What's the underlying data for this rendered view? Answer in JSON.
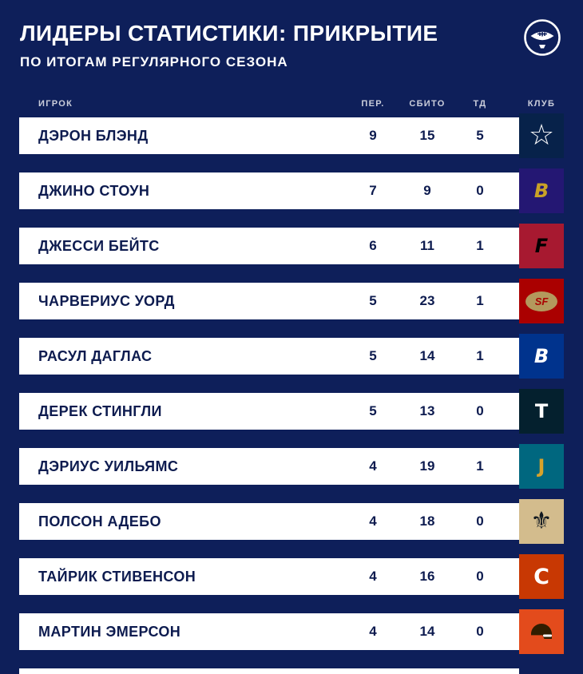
{
  "header": {
    "title": "ЛИДЕРЫ СТАТИСТИКИ: ПРИКРЫТИЕ",
    "subtitle": "ПО ИТОГАМ РЕГУЛЯРНОГО СЕЗОНА",
    "badge_icon": "football-icon"
  },
  "colors": {
    "background": "#0e1f5a",
    "card": "#ffffff",
    "text_dark": "#0d1b4f",
    "header_label": "#c3cae0"
  },
  "table": {
    "columns": [
      "ИГРОК",
      "ПЕР.",
      "СБИТО",
      "ТД",
      "КЛУБ"
    ],
    "rows": [
      {
        "player": "ДЭРОН БЛЭНД",
        "per": "9",
        "sbito": "15",
        "td": "5",
        "club": {
          "name": "dallas-cowboys",
          "bg": "#07224a",
          "type": "glyph",
          "glyph": "☆",
          "glyph_color": "#ffffff",
          "size": 36
        }
      },
      {
        "player": "ДЖИНО СТОУН",
        "per": "7",
        "sbito": "9",
        "td": "0",
        "club": {
          "name": "baltimore-ravens",
          "bg": "#241773",
          "type": "glyph",
          "glyph": "B",
          "glyph_color": "#c9a227",
          "size": 24,
          "italic": true
        }
      },
      {
        "player": "ДЖЕССИ БЕЙТС",
        "per": "6",
        "sbito": "11",
        "td": "1",
        "club": {
          "name": "atlanta-falcons",
          "bg": "#a71930",
          "type": "glyph",
          "glyph": "F",
          "glyph_color": "#000000",
          "size": 24,
          "italic": true
        }
      },
      {
        "player": "ЧАРВЕРИУС УОРД",
        "per": "5",
        "sbito": "23",
        "td": "1",
        "club": {
          "name": "san-francisco-49ers",
          "bg": "#aa0000",
          "type": "oval",
          "glyph": "SF",
          "glyph_color": "#aa0000",
          "oval_bg": "#b3995d"
        }
      },
      {
        "player": "РАСУЛ ДАГЛАС",
        "per": "5",
        "sbito": "14",
        "td": "1",
        "club": {
          "name": "buffalo-bills",
          "bg": "#00338d",
          "type": "glyph",
          "glyph": "B",
          "glyph_color": "#ffffff",
          "size": 24,
          "italic": true
        }
      },
      {
        "player": "ДЕРЕК СТИНГЛИ",
        "per": "5",
        "sbito": "13",
        "td": "0",
        "club": {
          "name": "houston-texans",
          "bg": "#04202e",
          "type": "glyph",
          "glyph": "T",
          "glyph_color": "#ffffff",
          "size": 24
        }
      },
      {
        "player": "ДЭРИУС УИЛЬЯМС",
        "per": "4",
        "sbito": "19",
        "td": "1",
        "club": {
          "name": "jacksonville-jaguars",
          "bg": "#00677f",
          "type": "glyph",
          "glyph": "J",
          "glyph_color": "#d7a22a",
          "size": 24
        }
      },
      {
        "player": "ПОЛСОН АДЕБО",
        "per": "4",
        "sbito": "18",
        "td": "0",
        "club": {
          "name": "new-orleans-saints",
          "bg": "#d3bc8d",
          "type": "glyph",
          "glyph": "⚜",
          "glyph_color": "#101820",
          "size": 30
        }
      },
      {
        "player": "ТАЙРИК СТИВЕНСОН",
        "per": "4",
        "sbito": "16",
        "td": "0",
        "club": {
          "name": "chicago-bears",
          "bg": "#c83803",
          "type": "glyph",
          "glyph": "C",
          "glyph_color": "#ffffff",
          "size": 27
        }
      },
      {
        "player": "МАРТИН ЭМЕРСОН",
        "per": "4",
        "sbito": "14",
        "td": "0",
        "club": {
          "name": "cleveland-browns",
          "bg": "#e34b1c",
          "type": "helmet",
          "glyph_color": "#311d00",
          "mask_color": "#ffffff"
        }
      }
    ]
  },
  "chart_data": {
    "type": "table",
    "title": "ЛИДЕРЫ СТАТИСТИКИ: ПРИКРЫТИЕ",
    "subtitle": "ПО ИТОГАМ РЕГУЛЯРНОГО СЕЗОНА",
    "columns": [
      "ИГРОК",
      "ПЕР.",
      "СБИТО",
      "ТД",
      "КЛУБ"
    ],
    "rows": [
      [
        "ДЭРОН БЛЭНД",
        9,
        15,
        5,
        "dallas-cowboys"
      ],
      [
        "ДЖИНО СТОУН",
        7,
        9,
        0,
        "baltimore-ravens"
      ],
      [
        "ДЖЕССИ БЕЙТС",
        6,
        11,
        1,
        "atlanta-falcons"
      ],
      [
        "ЧАРВЕРИУС УОРД",
        5,
        23,
        1,
        "san-francisco-49ers"
      ],
      [
        "РАСУЛ ДАГЛАС",
        5,
        14,
        1,
        "buffalo-bills"
      ],
      [
        "ДЕРЕК СТИНГЛИ",
        5,
        13,
        0,
        "houston-texans"
      ],
      [
        "ДЭРИУС УИЛЬЯМС",
        4,
        19,
        1,
        "jacksonville-jaguars"
      ],
      [
        "ПОЛСОН АДЕБО",
        4,
        18,
        0,
        "new-orleans-saints"
      ],
      [
        "ТАЙРИК СТИВЕНСОН",
        4,
        16,
        0,
        "chicago-bears"
      ],
      [
        "МАРТИН ЭМЕРСОН",
        4,
        14,
        0,
        "cleveland-browns"
      ]
    ]
  }
}
